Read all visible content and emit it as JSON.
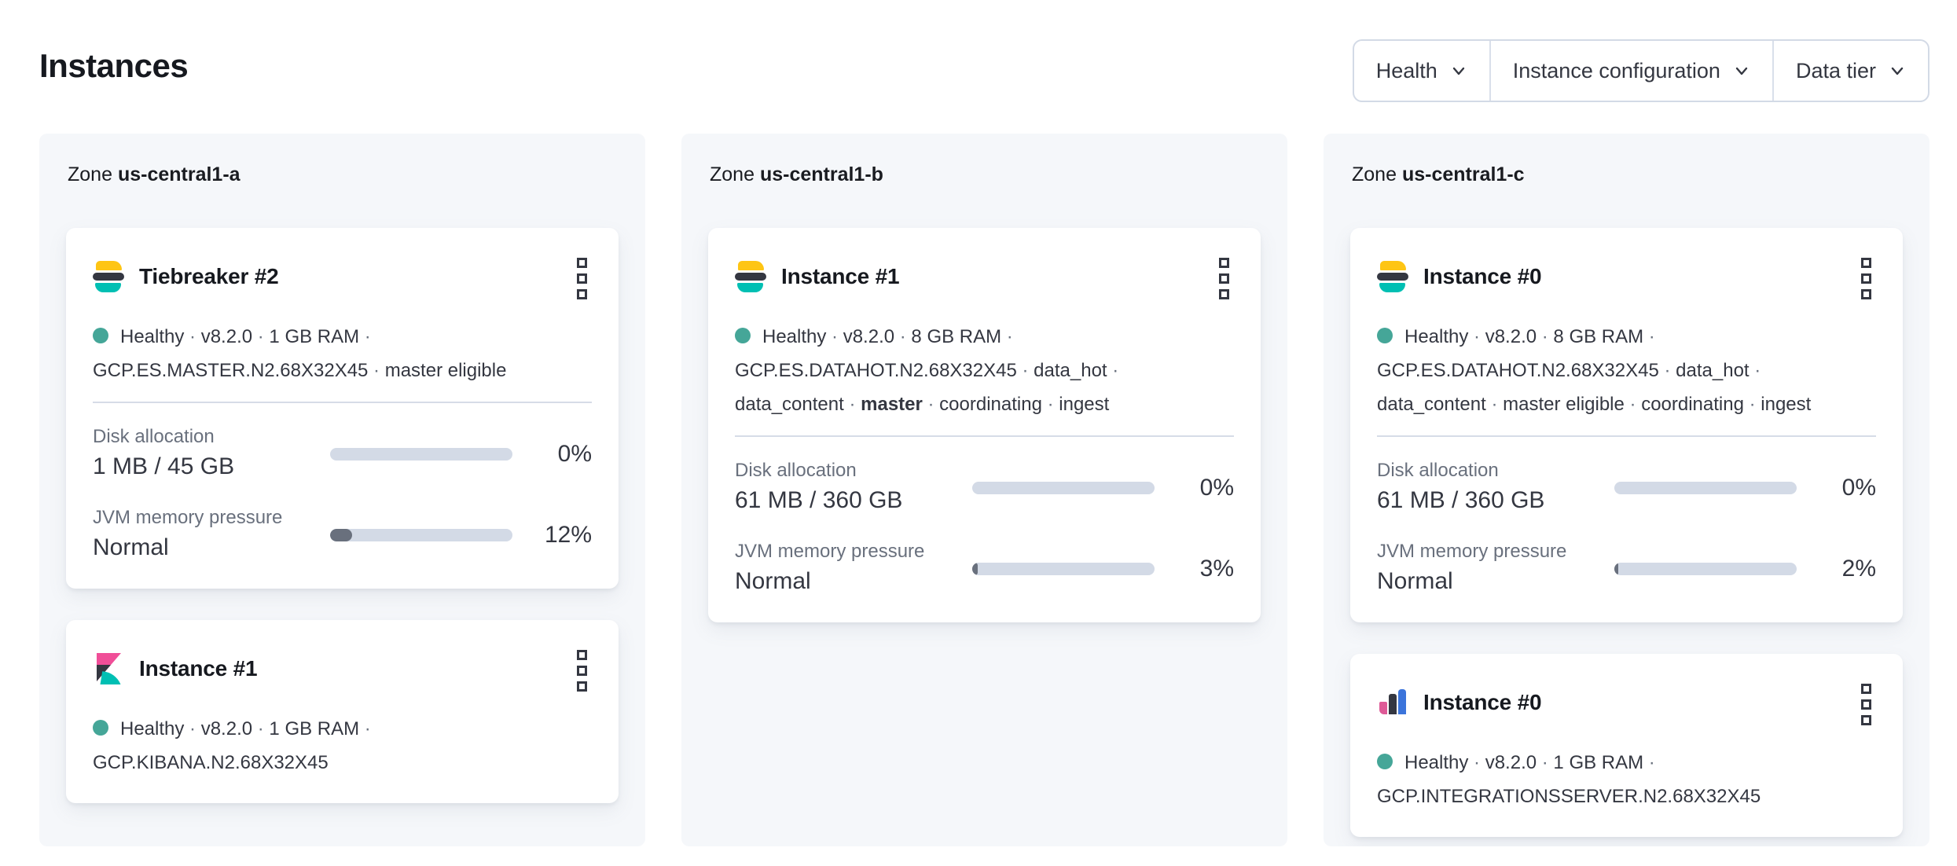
{
  "separator": "·",
  "header": {
    "title": "Instances",
    "filters": [
      {
        "label": "Health"
      },
      {
        "label": "Instance configuration"
      },
      {
        "label": "Data tier"
      }
    ]
  },
  "colors": {
    "healthy_dot": "#45a698",
    "meter_track": "#d3dae6",
    "meter_fill": "#69707d",
    "panel_background": "#f5f7fa",
    "elastic_yellow": "#fec514",
    "elastic_teal": "#00bfb3",
    "elastic_dark": "#343741",
    "kibana_pink": "#f04e98",
    "agent_blue": "#3b74db"
  },
  "zones": [
    {
      "label": "Zone",
      "name": "us-central1-a",
      "instances": [
        {
          "logo": "elasticsearch",
          "title": "Tiebreaker #2",
          "status": [
            {
              "t": "Healthy"
            },
            {
              "t": "v8.2.0"
            },
            {
              "t": "1 GB RAM"
            },
            {
              "t": "GCP.ES.MASTER.N2.68X32X45"
            },
            {
              "t": "master eligible"
            }
          ],
          "metrics": [
            {
              "label": "Disk allocation",
              "value": "1 MB / 45 GB",
              "percent": "0%",
              "fill": 0
            },
            {
              "label": "JVM memory pressure",
              "value": "Normal",
              "percent": "12%",
              "fill": 12
            }
          ]
        },
        {
          "logo": "kibana",
          "title": "Instance #1",
          "status": [
            {
              "t": "Healthy"
            },
            {
              "t": "v8.2.0"
            },
            {
              "t": "1 GB RAM"
            },
            {
              "t": "GCP.KIBANA.N2.68X32X45"
            }
          ],
          "metrics": []
        }
      ]
    },
    {
      "label": "Zone",
      "name": "us-central1-b",
      "instances": [
        {
          "logo": "elasticsearch",
          "title": "Instance #1",
          "status": [
            {
              "t": "Healthy"
            },
            {
              "t": "v8.2.0"
            },
            {
              "t": "8 GB RAM"
            },
            {
              "t": "GCP.ES.DATAHOT.N2.68X32X45"
            },
            {
              "t": "data_hot"
            },
            {
              "t": "data_content"
            },
            {
              "t": "master",
              "b": true
            },
            {
              "t": "coordinating"
            },
            {
              "t": "ingest"
            }
          ],
          "metrics": [
            {
              "label": "Disk allocation",
              "value": "61 MB / 360 GB",
              "percent": "0%",
              "fill": 0
            },
            {
              "label": "JVM memory pressure",
              "value": "Normal",
              "percent": "3%",
              "fill": 3
            }
          ]
        }
      ]
    },
    {
      "label": "Zone",
      "name": "us-central1-c",
      "instances": [
        {
          "logo": "elasticsearch",
          "title": "Instance #0",
          "status": [
            {
              "t": "Healthy"
            },
            {
              "t": "v8.2.0"
            },
            {
              "t": "8 GB RAM"
            },
            {
              "t": "GCP.ES.DATAHOT.N2.68X32X45"
            },
            {
              "t": "data_hot"
            },
            {
              "t": "data_content"
            },
            {
              "t": "master eligible"
            },
            {
              "t": "coordinating"
            },
            {
              "t": "ingest"
            }
          ],
          "metrics": [
            {
              "label": "Disk allocation",
              "value": "61 MB / 360 GB",
              "percent": "0%",
              "fill": 0
            },
            {
              "label": "JVM memory pressure",
              "value": "Normal",
              "percent": "2%",
              "fill": 2
            }
          ]
        },
        {
          "logo": "integrations-server",
          "title": "Instance #0",
          "status": [
            {
              "t": "Healthy"
            },
            {
              "t": "v8.2.0"
            },
            {
              "t": "1 GB RAM"
            },
            {
              "t": "GCP.INTEGRATIONSSERVER.N2.68X32X45"
            }
          ],
          "metrics": []
        }
      ]
    }
  ]
}
